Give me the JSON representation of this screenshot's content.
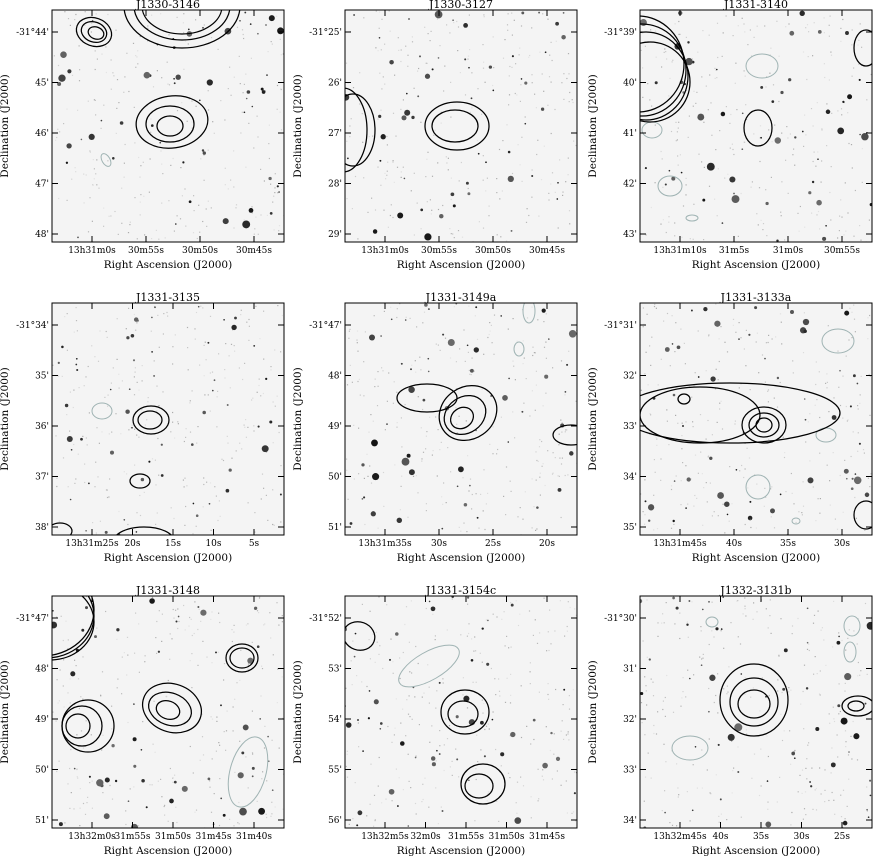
{
  "panels": [
    {
      "title": "J1330-3146",
      "xlabel": "Right Ascension (J2000)",
      "ylabel": "Declination (J2000)",
      "xticks": [
        "13h31m0s",
        "30m55s",
        "30m50s",
        "30m45s"
      ],
      "yticks": [
        "-31°44'",
        "45'",
        "46'",
        "47'",
        "48'"
      ]
    },
    {
      "title": "J1330-3127",
      "xlabel": "Right Ascension (J2000)",
      "ylabel": "Declination (J2000)",
      "xticks": [
        "13h31m0s",
        "30m55s",
        "30m50s",
        "30m45s"
      ],
      "yticks": [
        "-31°25'",
        "26'",
        "27'",
        "28'",
        "29'"
      ]
    },
    {
      "title": "J1331-3140",
      "xlabel": "Right Ascension (J2000)",
      "ylabel": "Declination (J2000)",
      "xticks": [
        "13h31m10s",
        "31m5s",
        "31m0s",
        "30m55s"
      ],
      "yticks": [
        "-31°39'",
        "40'",
        "41'",
        "42'",
        "43'"
      ]
    },
    {
      "title": "J1331-3135",
      "xlabel": "Right Ascension (J2000)",
      "ylabel": "Declination (J2000)",
      "xticks": [
        "13h31m25s",
        "20s",
        "15s",
        "10s",
        "5s"
      ],
      "yticks": [
        "-31°34'",
        "35'",
        "36'",
        "37'",
        "38'"
      ]
    },
    {
      "title": "J1331-3149a",
      "xlabel": "Right Ascension (J2000)",
      "ylabel": "Declination (J2000)",
      "xticks": [
        "13h31m35s",
        "30s",
        "25s",
        "20s"
      ],
      "yticks": [
        "-31°47'",
        "48'",
        "49'",
        "50'",
        "51'"
      ]
    },
    {
      "title": "J1331-3133a",
      "xlabel": "Right Ascension (J2000)",
      "ylabel": "Declination (J2000)",
      "xticks": [
        "13h31m45s",
        "40s",
        "35s",
        "30s"
      ],
      "yticks": [
        "-31°31'",
        "32'",
        "33'",
        "34'",
        "35'"
      ]
    },
    {
      "title": "J1331-3148",
      "xlabel": "Right Ascension (J2000)",
      "ylabel": "Declination (J2000)",
      "xticks": [
        "13h32m0s",
        "31m55s",
        "31m50s",
        "31m45s",
        "31m40s"
      ],
      "yticks": [
        "-31°47'",
        "48'",
        "49'",
        "50'",
        "51'"
      ]
    },
    {
      "title": "J1331-3154c",
      "xlabel": "Right Ascension (J2000)",
      "ylabel": "Declination (J2000)",
      "xticks": [
        "13h32m5s",
        "32m0s",
        "31m55s",
        "31m50s",
        "31m45s"
      ],
      "yticks": [
        "-31°52'",
        "53'",
        "54'",
        "55'",
        "56'"
      ]
    },
    {
      "title": "J1332-3131b",
      "xlabel": "Right Ascension (J2000)",
      "ylabel": "Declination (J2000)",
      "xticks": [
        "13h32m45s",
        "40s",
        "35s",
        "30s",
        "25s"
      ],
      "yticks": [
        "-31°30'",
        "31'",
        "32'",
        "33'",
        "34'"
      ]
    }
  ],
  "colors": {
    "background": "#f4f4f4",
    "contour_primary": "#000000",
    "contour_negative": "#9fb3b3"
  }
}
